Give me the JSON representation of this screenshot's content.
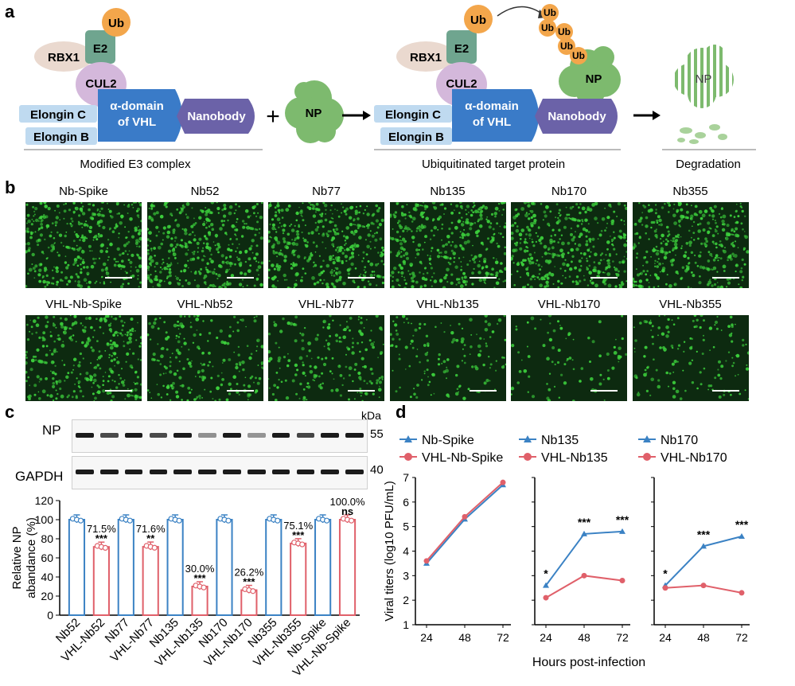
{
  "panel_letters": {
    "a": "a",
    "b": "b",
    "c": "c",
    "d": "d"
  },
  "panel_a": {
    "left": {
      "ub": "Ub",
      "e2": "E2",
      "rbx1": "RBX1",
      "cul2": "CUL2",
      "vhl": [
        "α-domain",
        "of VHL"
      ],
      "nanobody": "Nanobody",
      "elongin_c": "Elongin C",
      "elongin_b": "Elongin B",
      "caption": "Modified E3 complex"
    },
    "plus": "+",
    "np": "NP",
    "middle": {
      "ub": "Ub",
      "e2": "E2",
      "rbx1": "RBX1",
      "cul2": "CUL2",
      "vhl": [
        "α-domain",
        "of VHL"
      ],
      "nanobody": "Nanobody",
      "elongin_c": "Elongin C",
      "elongin_b": "Elongin B",
      "np": "NP",
      "ub_chain": [
        "Ub",
        "Ub",
        "Ub",
        "Ub",
        "Ub"
      ],
      "caption": "Ubiquitinated target protein"
    },
    "right": {
      "np": "NP",
      "caption": "Degradation"
    }
  },
  "panel_b": {
    "top_row": [
      "Nb-Spike",
      "Nb52",
      "Nb77",
      "Nb135",
      "Nb170",
      "Nb355"
    ],
    "bottom_row": [
      "VHL-Nb-Spike",
      "VHL-Nb52",
      "VHL-Nb77",
      "VHL-Nb135",
      "VHL-Nb170",
      "VHL-Nb355"
    ],
    "top_density": [
      0.55,
      0.55,
      0.58,
      0.55,
      0.55,
      0.52
    ],
    "bottom_density": [
      0.45,
      0.3,
      0.28,
      0.2,
      0.12,
      0.2
    ],
    "colors": {
      "cell": "#3ccf3c",
      "background": "#0d2a10"
    }
  },
  "panel_c": {
    "blot": {
      "kda": "kDa",
      "np_label": "NP",
      "gapdh_label": "GAPDH",
      "np_marker": "55",
      "gapdh_marker": "40",
      "np_intensity": [
        1.0,
        0.72,
        1.0,
        0.72,
        1.0,
        0.3,
        1.0,
        0.26,
        1.0,
        0.75,
        1.0,
        1.0
      ],
      "gapdh_intensity": [
        1,
        1,
        1,
        1,
        1,
        1,
        1,
        1,
        1,
        1,
        1,
        1
      ]
    },
    "chart_data": {
      "type": "bar",
      "ylabel": [
        "Relative NP",
        "abandance (%)"
      ],
      "ylim": [
        0,
        120
      ],
      "yticks": [
        "0",
        "20",
        "40",
        "60",
        "80",
        "100",
        "120"
      ],
      "categories": [
        "Nb52",
        "VHL-Nb52",
        "Nb77",
        "VHL-Nb77",
        "Nb135",
        "VHL-Nb135",
        "Nb170",
        "VHL-Nb170",
        "Nb355",
        "VHL-Nb355",
        "Nb-Spike",
        "VHL-Nb-Spike"
      ],
      "values": [
        100,
        71.5,
        100,
        71.6,
        100,
        30.0,
        100,
        26.2,
        100,
        75.1,
        100,
        100.0
      ],
      "bar_colors": [
        "#3b82c4",
        "#e0606a",
        "#3b82c4",
        "#e0606a",
        "#3b82c4",
        "#e0606a",
        "#3b82c4",
        "#e0606a",
        "#3b82c4",
        "#e0606a",
        "#3b82c4",
        "#e0606a"
      ],
      "pct_labels": [
        "",
        "71.5%",
        "",
        "71.6%",
        "",
        "30.0%",
        "",
        "26.2%",
        "",
        "75.1%",
        "",
        "100.0%"
      ],
      "sig_labels": [
        "",
        "***",
        "",
        "**",
        "",
        "***",
        "",
        "***",
        "",
        "***",
        "",
        "ns"
      ]
    }
  },
  "panel_d": {
    "ylabel": "Viral titers (log10 PFU/mL)",
    "xlabel": "Hours post-infection",
    "chart_data": [
      {
        "type": "line",
        "x": [
          24,
          48,
          72
        ],
        "ylim": [
          1,
          7
        ],
        "yticks": [
          "1",
          "2",
          "3",
          "4",
          "5",
          "6",
          "7"
        ],
        "xticks": [
          "24",
          "48",
          "72"
        ],
        "series": [
          {
            "name": "Nb-Spike",
            "values": [
              3.5,
              5.3,
              6.7
            ],
            "color": "#3b82c4",
            "marker": "triangle"
          },
          {
            "name": "VHL-Nb-Spike",
            "values": [
              3.6,
              5.4,
              6.8
            ],
            "color": "#e0606a",
            "marker": "circle"
          }
        ],
        "sig": [
          "",
          "",
          ""
        ]
      },
      {
        "type": "line",
        "x": [
          24,
          48,
          72
        ],
        "ylim": [
          1,
          7
        ],
        "xticks": [
          "24",
          "48",
          "72"
        ],
        "series": [
          {
            "name": "Nb135",
            "values": [
              2.6,
              4.7,
              4.8
            ],
            "color": "#3b82c4",
            "marker": "triangle"
          },
          {
            "name": "VHL-Nb135",
            "values": [
              2.1,
              3.0,
              2.8
            ],
            "color": "#e0606a",
            "marker": "circle"
          }
        ],
        "sig": [
          "*",
          "***",
          "***"
        ]
      },
      {
        "type": "line",
        "x": [
          24,
          48,
          72
        ],
        "ylim": [
          1,
          7
        ],
        "xticks": [
          "24",
          "48",
          "72"
        ],
        "series": [
          {
            "name": "Nb170",
            "values": [
              2.6,
              4.2,
              4.6
            ],
            "color": "#3b82c4",
            "marker": "triangle"
          },
          {
            "name": "VHL-Nb170",
            "values": [
              2.5,
              2.6,
              2.3
            ],
            "color": "#e0606a",
            "marker": "circle"
          }
        ],
        "sig": [
          "*",
          "***",
          "***"
        ]
      }
    ]
  }
}
